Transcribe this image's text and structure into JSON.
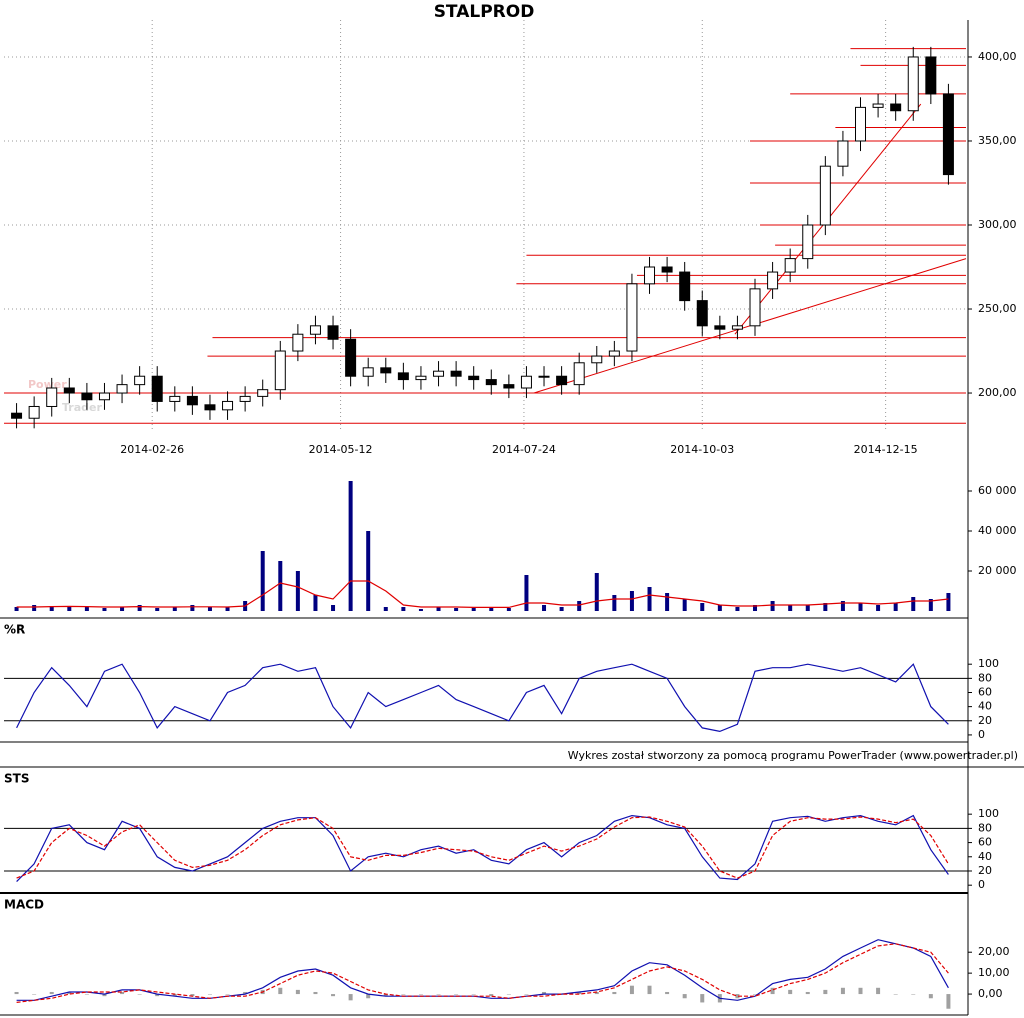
{
  "chart_data": [
    {
      "type": "candlestick",
      "title": "STALPROD",
      "watermark": [
        "Power",
        "Trader"
      ],
      "x": [
        "2014-01-03",
        "2014-01-10",
        "2014-01-17",
        "2014-01-24",
        "2014-01-31",
        "2014-02-07",
        "2014-02-14",
        "2014-02-21",
        "2014-02-28",
        "2014-03-07",
        "2014-03-14",
        "2014-03-21",
        "2014-03-28",
        "2014-04-04",
        "2014-04-11",
        "2014-04-18",
        "2014-04-25",
        "2014-05-02",
        "2014-05-09",
        "2014-05-16",
        "2014-05-23",
        "2014-05-30",
        "2014-06-06",
        "2014-06-13",
        "2014-06-20",
        "2014-06-27",
        "2014-07-04",
        "2014-07-11",
        "2014-07-18",
        "2014-07-25",
        "2014-08-01",
        "2014-08-08",
        "2014-08-15",
        "2014-08-22",
        "2014-08-29",
        "2014-09-05",
        "2014-09-12",
        "2014-09-19",
        "2014-09-26",
        "2014-10-03",
        "2014-10-10",
        "2014-10-17",
        "2014-10-24",
        "2014-10-31",
        "2014-11-07",
        "2014-11-14",
        "2014-11-21",
        "2014-11-28",
        "2014-12-05",
        "2014-12-12",
        "2014-12-19",
        "2014-12-26",
        "2015-01-02",
        "2015-01-09"
      ],
      "open": [
        188,
        185,
        192,
        203,
        200,
        196,
        200,
        205,
        210,
        195,
        198,
        193,
        190,
        195,
        198,
        202,
        225,
        235,
        240,
        232,
        210,
        215,
        212,
        208,
        210,
        213,
        210,
        208,
        205,
        203,
        210,
        210,
        205,
        218,
        222,
        225,
        265,
        275,
        272,
        255,
        240,
        238,
        240,
        262,
        272,
        280,
        300,
        335,
        350,
        370,
        372,
        368,
        400,
        378
      ],
      "high": [
        194,
        198,
        209,
        209,
        206,
        206,
        211,
        216,
        216,
        204,
        204,
        199,
        201,
        204,
        208,
        231,
        241,
        246,
        246,
        238,
        221,
        221,
        218,
        216,
        219,
        219,
        216,
        214,
        211,
        216,
        216,
        216,
        224,
        228,
        231,
        271,
        281,
        281,
        278,
        261,
        246,
        246,
        268,
        278,
        286,
        306,
        341,
        356,
        376,
        378,
        378,
        406,
        406,
        384
      ],
      "low": [
        179,
        179,
        186,
        194,
        190,
        190,
        194,
        199,
        189,
        189,
        187,
        184,
        184,
        189,
        192,
        196,
        219,
        229,
        226,
        204,
        204,
        206,
        202,
        202,
        204,
        204,
        202,
        199,
        197,
        197,
        204,
        199,
        199,
        212,
        216,
        219,
        259,
        266,
        249,
        234,
        232,
        232,
        234,
        256,
        266,
        274,
        294,
        329,
        344,
        364,
        362,
        362,
        372,
        324
      ],
      "close": [
        185,
        192,
        203,
        200,
        196,
        200,
        205,
        210,
        195,
        198,
        193,
        190,
        195,
        198,
        202,
        225,
        235,
        240,
        232,
        210,
        215,
        212,
        208,
        210,
        213,
        210,
        208,
        205,
        203,
        210,
        210,
        205,
        218,
        222,
        225,
        265,
        275,
        272,
        255,
        240,
        238,
        240,
        262,
        272,
        280,
        300,
        335,
        350,
        370,
        372,
        368,
        400,
        378,
        330
      ],
      "xlim": [
        "2013-12-29",
        "2015-01-16"
      ],
      "xticks": [
        "2014-02-26",
        "2014-05-12",
        "2014-07-24",
        "2014-10-03",
        "2014-12-15"
      ],
      "ylim": [
        178,
        422
      ],
      "yticks": [
        {
          "value": 200,
          "label": "200,00"
        },
        {
          "value": 250,
          "label": "250,00"
        },
        {
          "value": 300,
          "label": "300,00"
        },
        {
          "value": 350,
          "label": "350,00"
        },
        {
          "value": 400,
          "label": "400,00"
        }
      ],
      "grid": true,
      "line_color": "#e00000",
      "hlines": [
        {
          "value": 182,
          "from": "2013-12-29"
        },
        {
          "value": 200,
          "from": "2013-12-29"
        },
        {
          "value": 222,
          "from": "2014-03-20"
        },
        {
          "value": 233,
          "from": "2014-03-22"
        },
        {
          "value": 265,
          "from": "2014-07-21"
        },
        {
          "value": 270,
          "from": "2014-09-07"
        },
        {
          "value": 282,
          "from": "2014-07-25"
        },
        {
          "value": 288,
          "from": "2014-11-01"
        },
        {
          "value": 300,
          "from": "2014-10-26"
        },
        {
          "value": 325,
          "from": "2014-10-22"
        },
        {
          "value": 350,
          "from": "2014-10-22"
        },
        {
          "value": 358,
          "from": "2014-11-25"
        },
        {
          "value": 378,
          "from": "2014-11-07"
        },
        {
          "value": 395,
          "from": "2014-12-05"
        },
        {
          "value": 405,
          "from": "2014-12-01"
        }
      ],
      "trendlines": [
        {
          "x1": "2014-07-28",
          "y1": 200,
          "x2": "2015-01-16",
          "y2": 280
        },
        {
          "x1": "2014-10-16",
          "y1": 235,
          "x2": "2014-12-29",
          "y2": 372
        }
      ]
    },
    {
      "type": "bar",
      "color": "#000080",
      "values": [
        2000,
        3000,
        2500,
        2000,
        2000,
        1500,
        2000,
        3000,
        1500,
        2000,
        3000,
        2000,
        2000,
        5000,
        30000,
        25000,
        20000,
        8000,
        3000,
        65000,
        40000,
        2000,
        2000,
        1000,
        2000,
        1500,
        1500,
        2000,
        1500,
        18000,
        3000,
        2000,
        5000,
        19000,
        8000,
        10000,
        12000,
        9000,
        6000,
        4000,
        3000,
        2000,
        3000,
        5000,
        3000,
        3000,
        4000,
        5000,
        4000,
        3000,
        4000,
        7000,
        6000,
        9000
      ],
      "series": [
        {
          "color": "#e00000",
          "values": [
            2000,
            2000,
            2200,
            2300,
            2200,
            2000,
            2000,
            2200,
            2000,
            2000,
            2100,
            2100,
            2000,
            2500,
            8000,
            14000,
            12000,
            8000,
            6000,
            15000,
            15000,
            10000,
            3000,
            2000,
            2000,
            2000,
            1800,
            1800,
            1800,
            4000,
            4000,
            3000,
            3000,
            5000,
            6000,
            6000,
            8000,
            7000,
            6000,
            5000,
            3000,
            2500,
            2500,
            3000,
            3000,
            3000,
            3500,
            4000,
            4000,
            3500,
            4000,
            5000,
            5000,
            6000
          ]
        }
      ],
      "ylim": [
        0,
        68000
      ],
      "yticks": [
        {
          "value": 20000,
          "label": "20 000"
        },
        {
          "value": 40000,
          "label": "40 000"
        },
        {
          "value": 60000,
          "label": "60 000"
        }
      ]
    },
    {
      "type": "line",
      "title": "%R",
      "levels": [
        20,
        80
      ],
      "series": [
        {
          "color": "#1010b0",
          "values": [
            10,
            60,
            95,
            70,
            40,
            90,
            100,
            60,
            10,
            40,
            30,
            20,
            60,
            70,
            95,
            100,
            90,
            95,
            40,
            10,
            60,
            40,
            50,
            60,
            70,
            50,
            40,
            30,
            20,
            60,
            70,
            30,
            80,
            90,
            95,
            100,
            90,
            80,
            40,
            10,
            5,
            15,
            90,
            95,
            95,
            100,
            95,
            90,
            95,
            85,
            75,
            100,
            40,
            15
          ]
        }
      ],
      "ylim": [
        -10,
        113
      ],
      "yticks": [
        0,
        20,
        40,
        60,
        80,
        100
      ]
    },
    {
      "type": "line",
      "title": "STS",
      "levels": [
        20,
        80
      ],
      "series": [
        {
          "color": "#1010b0",
          "values": [
            5,
            30,
            80,
            85,
            60,
            50,
            90,
            80,
            40,
            25,
            20,
            30,
            40,
            60,
            80,
            90,
            95,
            95,
            70,
            20,
            40,
            45,
            40,
            50,
            55,
            45,
            50,
            35,
            30,
            50,
            60,
            40,
            60,
            70,
            90,
            98,
            95,
            85,
            80,
            40,
            10,
            8,
            30,
            90,
            95,
            97,
            90,
            95,
            98,
            90,
            85,
            98,
            50,
            15
          ]
        },
        {
          "color": "#e00000",
          "dashed": true,
          "values": [
            10,
            20,
            60,
            80,
            70,
            55,
            75,
            85,
            60,
            35,
            25,
            28,
            35,
            50,
            70,
            85,
            92,
            95,
            80,
            40,
            35,
            42,
            42,
            46,
            52,
            50,
            48,
            40,
            35,
            45,
            55,
            48,
            55,
            65,
            82,
            95,
            96,
            90,
            82,
            55,
            20,
            10,
            20,
            70,
            90,
            95,
            93,
            93,
            96,
            93,
            88,
            93,
            70,
            30
          ]
        }
      ],
      "ylim": [
        -11,
        127
      ],
      "yticks": [
        0,
        20,
        40,
        60,
        80,
        100
      ]
    },
    {
      "type": "line",
      "title": "MACD",
      "histogram": {
        "color": "#a0a0a0",
        "values": [
          1,
          0,
          1,
          1,
          0,
          -1,
          1,
          0,
          -1,
          -1,
          -1,
          0,
          0,
          1,
          2,
          3,
          2,
          1,
          -1,
          -3,
          -2,
          -1,
          0,
          0,
          0,
          0,
          0,
          -1,
          0,
          0,
          1,
          0,
          1,
          1,
          1,
          4,
          4,
          1,
          -2,
          -4,
          -4,
          -2,
          0,
          3,
          2,
          1,
          2,
          3,
          3,
          3,
          0,
          0,
          -2,
          -7
        ]
      },
      "series": [
        {
          "color": "#1010b0",
          "values": [
            -3,
            -3,
            -1,
            1,
            1,
            0,
            2,
            2,
            0,
            -1,
            -2,
            -2,
            -1,
            0,
            3,
            8,
            11,
            12,
            9,
            3,
            0,
            -1,
            -1,
            -1,
            -1,
            -1,
            -1,
            -2,
            -2,
            -1,
            0,
            0,
            1,
            2,
            4,
            11,
            15,
            14,
            9,
            3,
            -2,
            -3,
            -1,
            5,
            7,
            8,
            12,
            18,
            22,
            26,
            24,
            22,
            18,
            3
          ]
        },
        {
          "color": "#e00000",
          "dashed": true,
          "values": [
            -4,
            -3,
            -2,
            0,
            1,
            1,
            1,
            2,
            1,
            0,
            -1,
            -2,
            -1,
            -1,
            1,
            5,
            9,
            11,
            10,
            6,
            2,
            0,
            -1,
            -1,
            -1,
            -1,
            -1,
            -1,
            -2,
            -1,
            -1,
            0,
            0,
            1,
            3,
            7,
            11,
            13,
            11,
            7,
            2,
            -1,
            -1,
            2,
            5,
            7,
            10,
            15,
            19,
            23,
            24,
            22,
            20,
            10
          ]
        }
      ],
      "ylim": [
        -10,
        33
      ],
      "yticks": [
        {
          "value": 0,
          "label": "0,00"
        },
        {
          "value": 10,
          "label": "10,00"
        },
        {
          "value": 20,
          "label": "20,00"
        }
      ]
    }
  ],
  "footer": "Wykres został stworzony za pomocą programu PowerTrader (www.powertrader.pl)"
}
